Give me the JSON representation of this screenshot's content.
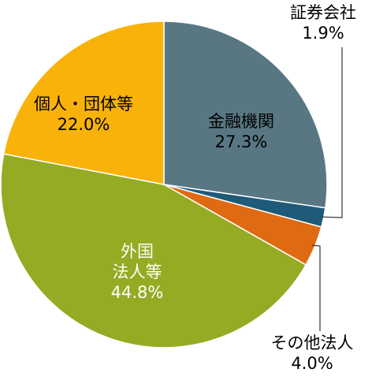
{
  "chart_data": {
    "type": "pie",
    "start": "12 o'clock",
    "direction": "clockwise",
    "slices": [
      {
        "label": "金融機関",
        "lines": [
          "金融機関"
        ],
        "value": 27.3,
        "value_text": "27.3%",
        "color": "#587783",
        "label_color": "#000000"
      },
      {
        "label": "証券会社",
        "lines": [
          "証券会社"
        ],
        "value": 1.9,
        "value_text": "1.9%",
        "color": "#1f5a78",
        "label_color": "#000000"
      },
      {
        "label": "その他法人",
        "lines": [
          "その他法人"
        ],
        "value": 4.0,
        "value_text": "4.0%",
        "color": "#e06a12",
        "label_color": "#000000"
      },
      {
        "label": "外国法人等",
        "lines": [
          "外国",
          "法人等"
        ],
        "value": 44.8,
        "value_text": "44.8%",
        "color": "#95ab23",
        "label_color": "#ffffff"
      },
      {
        "label": "個人・団体等",
        "lines": [
          "個人・団体等"
        ],
        "value": 22.0,
        "value_text": "22.0%",
        "color": "#f9b209",
        "label_color": "#000000"
      }
    ]
  }
}
